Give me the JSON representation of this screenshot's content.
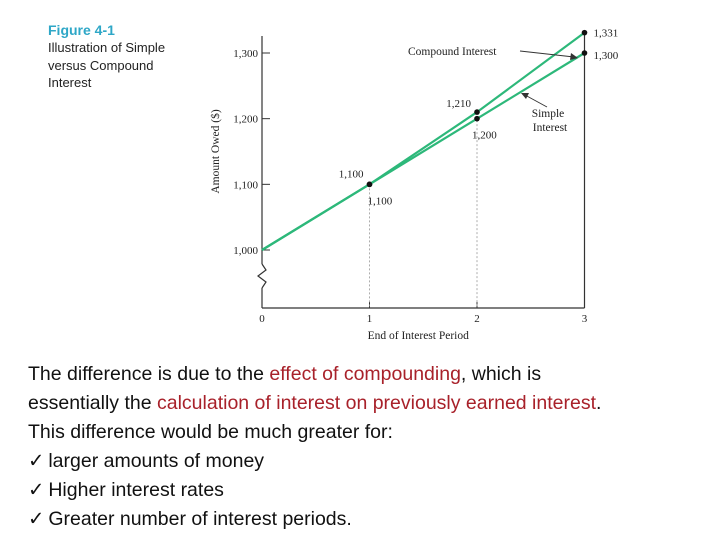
{
  "figure": {
    "title": "Figure 4-1",
    "subtitle_lines": [
      "Illustration of Simple",
      "versus Compound",
      "Interest"
    ]
  },
  "chart_data": {
    "type": "line",
    "xlabel": "End of Interest Period",
    "ylabel": "Amount Owed ($)",
    "x_ticks": [
      "0",
      "1",
      "2",
      "3"
    ],
    "y_ticks": [
      {
        "value": 1000,
        "label": "1,000"
      },
      {
        "value": 1100,
        "label": "1,100"
      },
      {
        "value": 1200,
        "label": "1,200"
      },
      {
        "value": 1300,
        "label": "1,300"
      }
    ],
    "ylim": [
      1000,
      1331
    ],
    "xlim": [
      0,
      3
    ],
    "y_axis_break": true,
    "grid": false,
    "series": [
      {
        "name": "Compound Interest",
        "color": "#2db87a",
        "x": [
          0,
          1,
          2,
          3
        ],
        "y": [
          1000,
          1100,
          1210,
          1331
        ],
        "point_labels": [
          "",
          "1,100",
          "1,210",
          "1,331"
        ]
      },
      {
        "name": "Simple Interest",
        "color": "#2db87a",
        "x": [
          0,
          1,
          2,
          3
        ],
        "y": [
          1000,
          1100,
          1200,
          1300
        ],
        "point_labels": [
          "",
          "1,100",
          "1,200",
          "1,300"
        ]
      }
    ]
  },
  "text_block": {
    "line1": {
      "pre": "The difference is due to the ",
      "hl": "effect of compounding",
      "post": ", which is"
    },
    "line2": {
      "pre": "essentially the ",
      "hl": "calculation of interest on previously earned interest",
      "post": "."
    },
    "line3": "This difference would be much greater for:",
    "check_glyph": "✓",
    "bullets": [
      "larger amounts of money",
      "Higher interest rates",
      "Greater number of interest periods."
    ]
  },
  "colors": {
    "line": "#2db87a",
    "accent": "#a8212a",
    "title": "#2ea7c7"
  }
}
